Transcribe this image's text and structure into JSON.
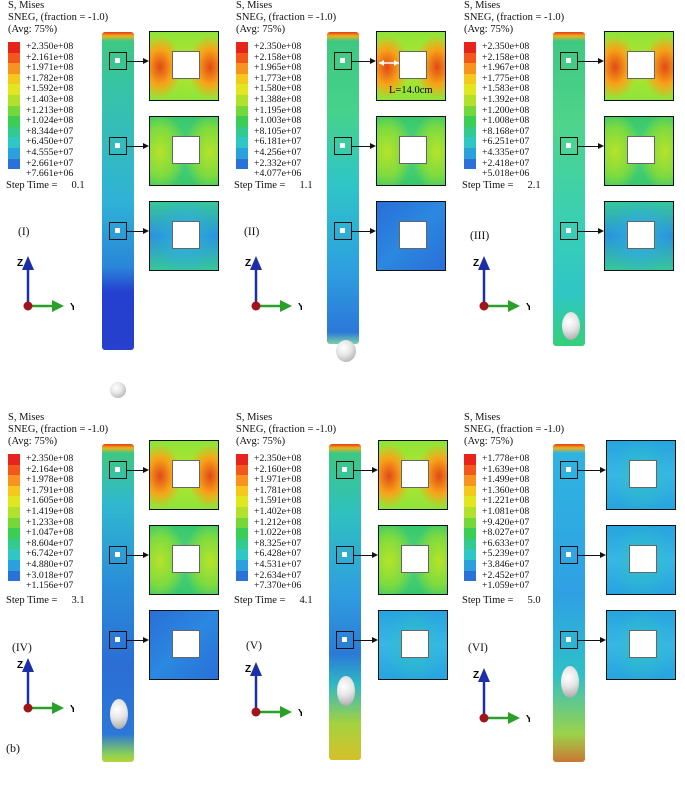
{
  "figure_label": "(b)",
  "panels": [
    {
      "id": "I",
      "header": [
        "S, Mises",
        "SNEG, (fraction = -1.0)",
        "(Avg: 75%)"
      ],
      "legend_values": [
        "+2.350e+08",
        "+2.161e+08",
        "+1.971e+08",
        "+1.782e+08",
        "+1.592e+08",
        "+1.403e+08",
        "+1.213e+08",
        "+1.024e+08",
        "+8.344e+07",
        "+6.450e+07",
        "+4.555e+07",
        "+2.661e+07",
        "+7.661e+06"
      ],
      "step_label": "Step Time =",
      "step_value": "0.1",
      "roman": "(I)",
      "axis_z": "Z",
      "axis_y": "Y"
    },
    {
      "id": "II",
      "header": [
        "S, Mises",
        "SNEG, (fraction = -1.0)",
        "(Avg: 75%)"
      ],
      "legend_values": [
        "+2.350e+08",
        "+2.158e+08",
        "+1.965e+08",
        "+1.773e+08",
        "+1.580e+08",
        "+1.388e+08",
        "+1.195e+08",
        "+1.003e+08",
        "+8.105e+07",
        "+6.181e+07",
        "+4.256e+07",
        "+2.332e+07",
        "+4.077e+06"
      ],
      "step_label": "Step Time =",
      "step_value": "1.1",
      "roman": "(II)",
      "axis_z": "Z",
      "axis_y": "Y",
      "length_label": "L=14.0cm"
    },
    {
      "id": "III",
      "header": [
        "S, Mises",
        "SNEG, (fraction = -1.0)",
        "(Avg: 75%)"
      ],
      "legend_values": [
        "+2.350e+08",
        "+2.158e+08",
        "+1.967e+08",
        "+1.775e+08",
        "+1.583e+08",
        "+1.392e+08",
        "+1.200e+08",
        "+1.008e+08",
        "+8.168e+07",
        "+6.251e+07",
        "+4.335e+07",
        "+2.418e+07",
        "+5.018e+06"
      ],
      "step_label": "Step Time =",
      "step_value": "2.1",
      "roman": "(III)",
      "axis_z": "Z",
      "axis_y": "Y"
    },
    {
      "id": "IV",
      "header": [
        "S, Mises",
        "SNEG, (fraction = -1.0)",
        "(Avg: 75%)"
      ],
      "legend_values": [
        "+2.350e+08",
        "+2.164e+08",
        "+1.978e+08",
        "+1.791e+08",
        "+1.605e+08",
        "+1.419e+08",
        "+1.233e+08",
        "+1.047e+08",
        "+8.604e+07",
        "+6.742e+07",
        "+4.880e+07",
        "+3.018e+07",
        "+1.156e+07"
      ],
      "step_label": "Step Time =",
      "step_value": "3.1",
      "roman": "(IV)",
      "axis_z": "Z",
      "axis_y": "Y"
    },
    {
      "id": "V",
      "header": [
        "S, Mises",
        "SNEG, (fraction = -1.0)",
        "(Avg: 75%)"
      ],
      "legend_values": [
        "+2.350e+08",
        "+2.160e+08",
        "+1.971e+08",
        "+1.781e+08",
        "+1.591e+08",
        "+1.402e+08",
        "+1.212e+08",
        "+1.022e+08",
        "+8.325e+07",
        "+6.428e+07",
        "+4.531e+07",
        "+2.634e+07",
        "+7.370e+06"
      ],
      "step_label": "Step Time =",
      "step_value": "4.1",
      "roman": "(V)",
      "axis_z": "Z",
      "axis_y": "Y"
    },
    {
      "id": "VI",
      "header": [
        "S, Mises",
        "SNEG, (fraction = -1.0)",
        "(Avg: 75%)"
      ],
      "legend_values": [
        "+1.778e+08",
        "+1.639e+08",
        "+1.499e+08",
        "+1.360e+08",
        "+1.221e+08",
        "+1.081e+08",
        "+9.420e+07",
        "+8.027e+07",
        "+6.633e+07",
        "+5.239e+07",
        "+3.846e+07",
        "+2.452e+07",
        "+1.059e+07"
      ],
      "step_label": "Step Time =",
      "step_value": "5.0",
      "roman": "(VI)",
      "axis_z": "Z",
      "axis_y": "Y"
    }
  ],
  "legend_colors": [
    "#e8231b",
    "#f2581c",
    "#f7931e",
    "#f5c81c",
    "#e2e61e",
    "#b3e12b",
    "#74d83b",
    "#3bce55",
    "#33ca8f",
    "#2fc6c6",
    "#2aa1dd",
    "#2a71d8",
    "#2b3fcf"
  ]
}
